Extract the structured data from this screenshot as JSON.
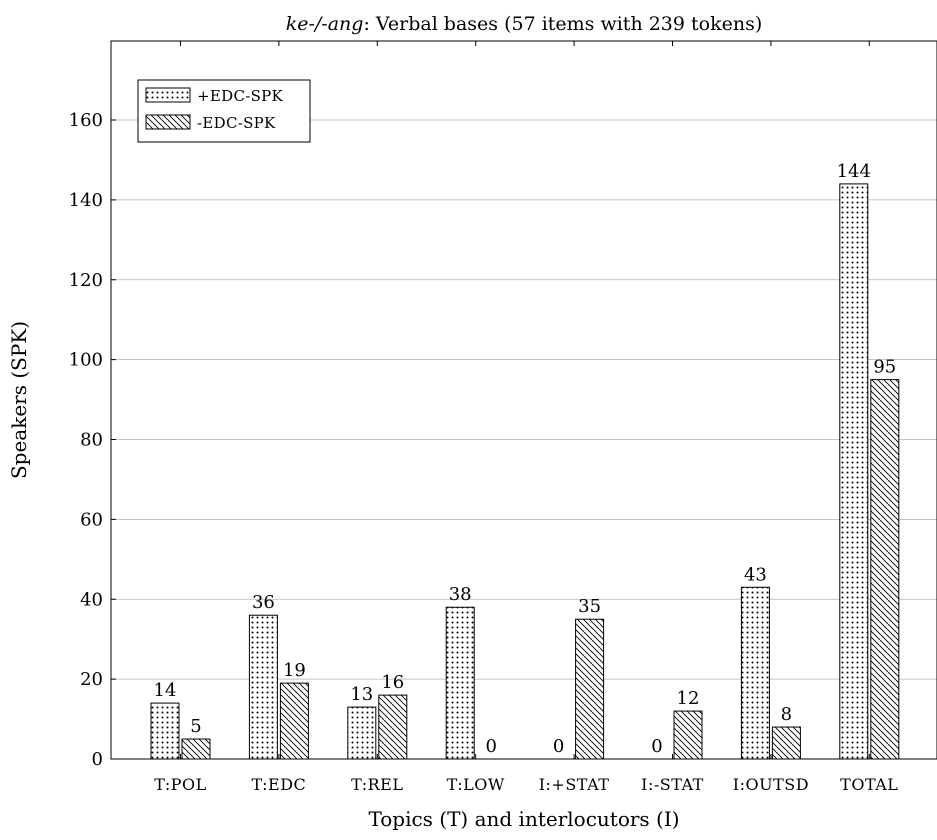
{
  "chart_data": {
    "type": "bar",
    "title_italic": "ke-/-ang",
    "title_rest": ": Verbal bases (57 items with 239 tokens)",
    "xlabel": "Topics (T) and interlocutors (I)",
    "ylabel": "Speakers (SPK)",
    "categories": [
      "T:POL",
      "T:EDC",
      "T:REL",
      "T:LOW",
      "I:+STAT",
      "I:-STAT",
      "I:OUTSD",
      "TOTAL"
    ],
    "series": [
      {
        "name": "+EDC-SPK",
        "pattern": "dots",
        "values": [
          14,
          36,
          13,
          38,
          0,
          0,
          43,
          144
        ]
      },
      {
        "name": "-EDC-SPK",
        "pattern": "hatch",
        "values": [
          5,
          19,
          16,
          0,
          35,
          12,
          8,
          95
        ]
      }
    ],
    "ylim": [
      0,
      160
    ],
    "yticks": [
      0,
      20,
      40,
      60,
      80,
      100,
      120,
      140,
      160
    ],
    "grid": "horizontal",
    "legend_position": "top-left"
  }
}
